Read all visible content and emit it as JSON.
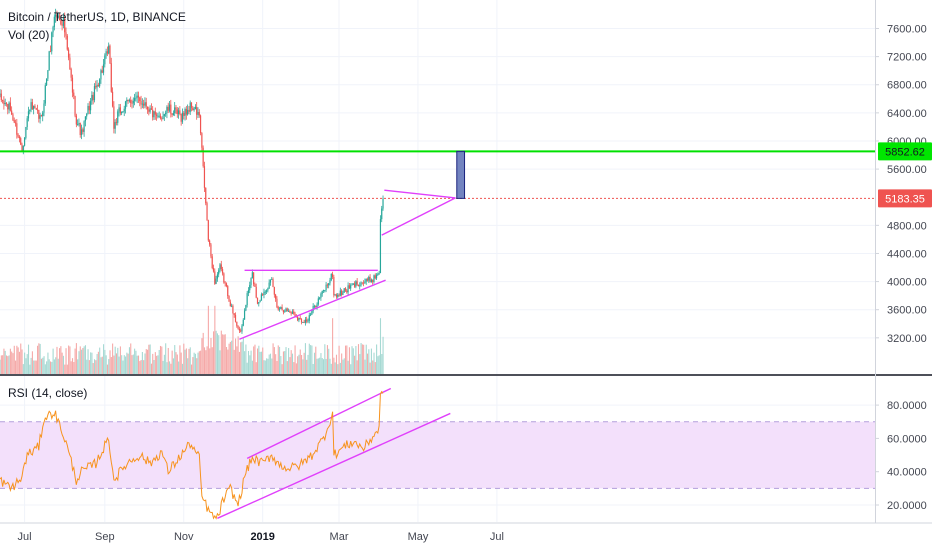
{
  "header": {
    "symbol": "Bitcoin / TetherUS, 1D, BINANCE",
    "volume_label": "Vol (20)",
    "rsi_label": "RSI (14, close)"
  },
  "colors": {
    "bull": "#26a69a",
    "bear": "#ef5350",
    "support_line": "#00e000",
    "price_line": "#ef5350",
    "trendline": "#e040fb",
    "target_box": "#5b6fb5",
    "rsi_line": "#f7931e",
    "rsi_band": "#f3e0fb",
    "rsi_level": "#b39ddb"
  },
  "chart_data": [
    {
      "type": "candlestick",
      "title": "Bitcoin / TetherUS, 1D, BINANCE",
      "y_ticks": [
        "7600.00",
        "7200.00",
        "6800.00",
        "6400.00",
        "6000.00",
        "5600.00",
        "4800.00",
        "4400.00",
        "4000.00",
        "3600.00",
        "3200.00"
      ],
      "x_ticks": [
        "Jul",
        "Sep",
        "Nov",
        "2019",
        "Mar",
        "May",
        "Jul"
      ],
      "ylim": [
        2950,
        7900
      ],
      "date_range": [
        "2018-06-12",
        "2019-04-04"
      ],
      "horizontal_levels": [
        {
          "label": "5852.62",
          "value": 5852.62,
          "style": "solid",
          "color": "#00e000"
        },
        {
          "label": "5183.35",
          "value": 5183.35,
          "style": "dotted",
          "color": "#ef5350"
        }
      ],
      "price_path": [
        [
          "2018-06-12",
          6600
        ],
        [
          "2018-06-20",
          6450
        ],
        [
          "2018-06-29",
          5900
        ],
        [
          "2018-07-05",
          6500
        ],
        [
          "2018-07-14",
          6300
        ],
        [
          "2018-07-24",
          7800
        ],
        [
          "2018-07-31",
          7700
        ],
        [
          "2018-08-10",
          6300
        ],
        [
          "2018-08-14",
          6100
        ],
        [
          "2018-08-20",
          6500
        ],
        [
          "2018-08-26",
          6800
        ],
        [
          "2018-09-04",
          7300
        ],
        [
          "2018-09-08",
          6200
        ],
        [
          "2018-09-12",
          6400
        ],
        [
          "2018-09-22",
          6600
        ],
        [
          "2018-10-02",
          6550
        ],
        [
          "2018-10-11",
          6300
        ],
        [
          "2018-10-20",
          6450
        ],
        [
          "2018-10-30",
          6350
        ],
        [
          "2018-11-07",
          6500
        ],
        [
          "2018-11-13",
          6350
        ],
        [
          "2018-11-16",
          5600
        ],
        [
          "2018-11-20",
          4600
        ],
        [
          "2018-11-25",
          4000
        ],
        [
          "2018-11-29",
          4200
        ],
        [
          "2018-12-04",
          3900
        ],
        [
          "2018-12-09",
          3550
        ],
        [
          "2018-12-15",
          3250
        ],
        [
          "2018-12-20",
          3800
        ],
        [
          "2018-12-24",
          4100
        ],
        [
          "2018-12-28",
          3700
        ],
        [
          "2019-01-03",
          3900
        ],
        [
          "2019-01-08",
          4000
        ],
        [
          "2019-01-12",
          3650
        ],
        [
          "2019-01-18",
          3600
        ],
        [
          "2019-01-25",
          3550
        ],
        [
          "2019-01-30",
          3450
        ],
        [
          "2019-02-05",
          3450
        ],
        [
          "2019-02-10",
          3650
        ],
        [
          "2019-02-18",
          3900
        ],
        [
          "2019-02-24",
          4100
        ],
        [
          "2019-02-25",
          3800
        ],
        [
          "2019-03-01",
          3820
        ],
        [
          "2019-03-08",
          3900
        ],
        [
          "2019-03-15",
          3980
        ],
        [
          "2019-03-22",
          4000
        ],
        [
          "2019-03-28",
          4050
        ],
        [
          "2019-04-01",
          4150
        ],
        [
          "2019-04-02",
          4900
        ],
        [
          "2019-04-03",
          5000
        ],
        [
          "2019-04-04",
          5183.35
        ]
      ],
      "drawings": [
        {
          "kind": "trendline",
          "from": [
            "2018-12-18",
            4160
          ],
          "to": [
            "2019-03-31",
            4160
          ]
        },
        {
          "kind": "trendline",
          "from": [
            "2018-12-14",
            3180
          ],
          "to": [
            "2019-04-06",
            4020
          ]
        },
        {
          "kind": "trendline",
          "from": [
            "2019-04-05",
            5300
          ],
          "to": [
            "2019-05-30",
            5190
          ]
        },
        {
          "kind": "trendline",
          "from": [
            "2019-04-03",
            4660
          ],
          "to": [
            "2019-05-30",
            5190
          ]
        },
        {
          "kind": "box",
          "from": [
            "2019-05-31",
            5183.35
          ],
          "to": [
            "2019-06-06",
            5852.62
          ]
        }
      ]
    },
    {
      "type": "bar",
      "name": "Vol (20)",
      "description_scale": "relative volume 0-1"
    },
    {
      "type": "line",
      "name": "RSI (14, close)",
      "ylim": [
        7,
        95
      ],
      "y_ticks": [
        "80.0000",
        "60.0000",
        "40.0000",
        "20.0000"
      ],
      "band": [
        30,
        70
      ],
      "values": [
        [
          "2018-06-12",
          35
        ],
        [
          "2018-06-20",
          30
        ],
        [
          "2018-06-28",
          35
        ],
        [
          "2018-07-03",
          50
        ],
        [
          "2018-07-12",
          55
        ],
        [
          "2018-07-16",
          72
        ],
        [
          "2018-07-24",
          76
        ],
        [
          "2018-08-01",
          60
        ],
        [
          "2018-08-10",
          35
        ],
        [
          "2018-08-14",
          40
        ],
        [
          "2018-08-25",
          45
        ],
        [
          "2018-09-04",
          60
        ],
        [
          "2018-09-08",
          35
        ],
        [
          "2018-09-18",
          45
        ],
        [
          "2018-09-28",
          50
        ],
        [
          "2018-10-06",
          45
        ],
        [
          "2018-10-15",
          52
        ],
        [
          "2018-10-20",
          40
        ],
        [
          "2018-10-28",
          48
        ],
        [
          "2018-11-06",
          57
        ],
        [
          "2018-11-13",
          48
        ],
        [
          "2018-11-15",
          25
        ],
        [
          "2018-11-22",
          14
        ],
        [
          "2018-11-27",
          12
        ],
        [
          "2018-12-01",
          22
        ],
        [
          "2018-12-07",
          30
        ],
        [
          "2018-12-13",
          20
        ],
        [
          "2018-12-19",
          40
        ],
        [
          "2018-12-24",
          48
        ],
        [
          "2019-01-01",
          45
        ],
        [
          "2019-01-08",
          50
        ],
        [
          "2019-01-14",
          44
        ],
        [
          "2019-01-22",
          42
        ],
        [
          "2019-01-30",
          44
        ],
        [
          "2019-02-08",
          50
        ],
        [
          "2019-02-17",
          60
        ],
        [
          "2019-02-24",
          75
        ],
        [
          "2019-02-25",
          50
        ],
        [
          "2019-03-05",
          55
        ],
        [
          "2019-03-12",
          58
        ],
        [
          "2019-03-20",
          54
        ],
        [
          "2019-03-28",
          62
        ],
        [
          "2019-04-01",
          66
        ],
        [
          "2019-04-02",
          85
        ],
        [
          "2019-04-04",
          87
        ]
      ],
      "drawings": [
        {
          "kind": "trendline",
          "from": [
            "2018-12-20",
            48
          ],
          "to": [
            "2019-04-10",
            90
          ]
        },
        {
          "kind": "trendline",
          "from": [
            "2018-11-27",
            12
          ],
          "to": [
            "2019-05-26",
            75
          ]
        }
      ]
    }
  ]
}
